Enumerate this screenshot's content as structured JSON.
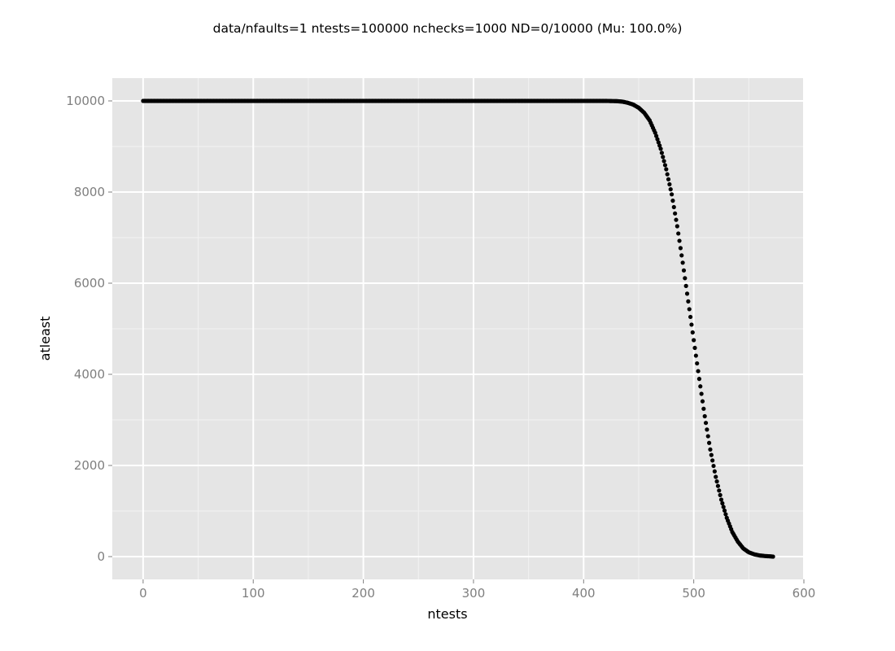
{
  "chart_data": {
    "type": "scatter",
    "title": "data/nfaults=1 ntests=100000 nchecks=1000  ND=0/10000 (Mu: 100.0%)",
    "xlabel": "ntests",
    "ylabel": "atleast",
    "xlim": [
      -28,
      600
    ],
    "ylim": [
      -500,
      10500
    ],
    "x_ticks": [
      0,
      100,
      200,
      300,
      400,
      500,
      600
    ],
    "x_tick_labels": [
      "0",
      "100",
      "200",
      "300",
      "400",
      "500",
      "600"
    ],
    "y_ticks": [
      0,
      2000,
      4000,
      6000,
      8000,
      10000
    ],
    "y_tick_labels": [
      "0",
      "2000",
      "4000",
      "6000",
      "8000",
      "10000"
    ],
    "grid": true,
    "legend": "none",
    "series": [
      {
        "color": "#000000",
        "points": [
          [
            0,
            10000
          ],
          [
            50,
            10000
          ],
          [
            100,
            10000
          ],
          [
            150,
            10000
          ],
          [
            200,
            10000
          ],
          [
            250,
            10000
          ],
          [
            300,
            10000
          ],
          [
            350,
            10000
          ],
          [
            400,
            10000
          ],
          [
            420,
            10000
          ],
          [
            430,
            9995
          ],
          [
            435,
            9985
          ],
          [
            440,
            9960
          ],
          [
            445,
            9920
          ],
          [
            450,
            9850
          ],
          [
            455,
            9740
          ],
          [
            460,
            9570
          ],
          [
            465,
            9300
          ],
          [
            470,
            8950
          ],
          [
            475,
            8500
          ],
          [
            480,
            7950
          ],
          [
            485,
            7250
          ],
          [
            490,
            6450
          ],
          [
            495,
            5600
          ],
          [
            500,
            4750
          ],
          [
            505,
            3900
          ],
          [
            510,
            3080
          ],
          [
            515,
            2350
          ],
          [
            520,
            1750
          ],
          [
            525,
            1250
          ],
          [
            530,
            850
          ],
          [
            535,
            540
          ],
          [
            540,
            330
          ],
          [
            545,
            180
          ],
          [
            550,
            95
          ],
          [
            555,
            50
          ],
          [
            560,
            25
          ],
          [
            565,
            12
          ],
          [
            570,
            5
          ],
          [
            572,
            0
          ]
        ]
      }
    ]
  },
  "colors": {
    "panel_background": "#e5e5e5",
    "major_grid": "#ffffff",
    "minor_grid": "#f2f2f2",
    "point": "#000000",
    "tick_label": "#7f7f7f"
  }
}
